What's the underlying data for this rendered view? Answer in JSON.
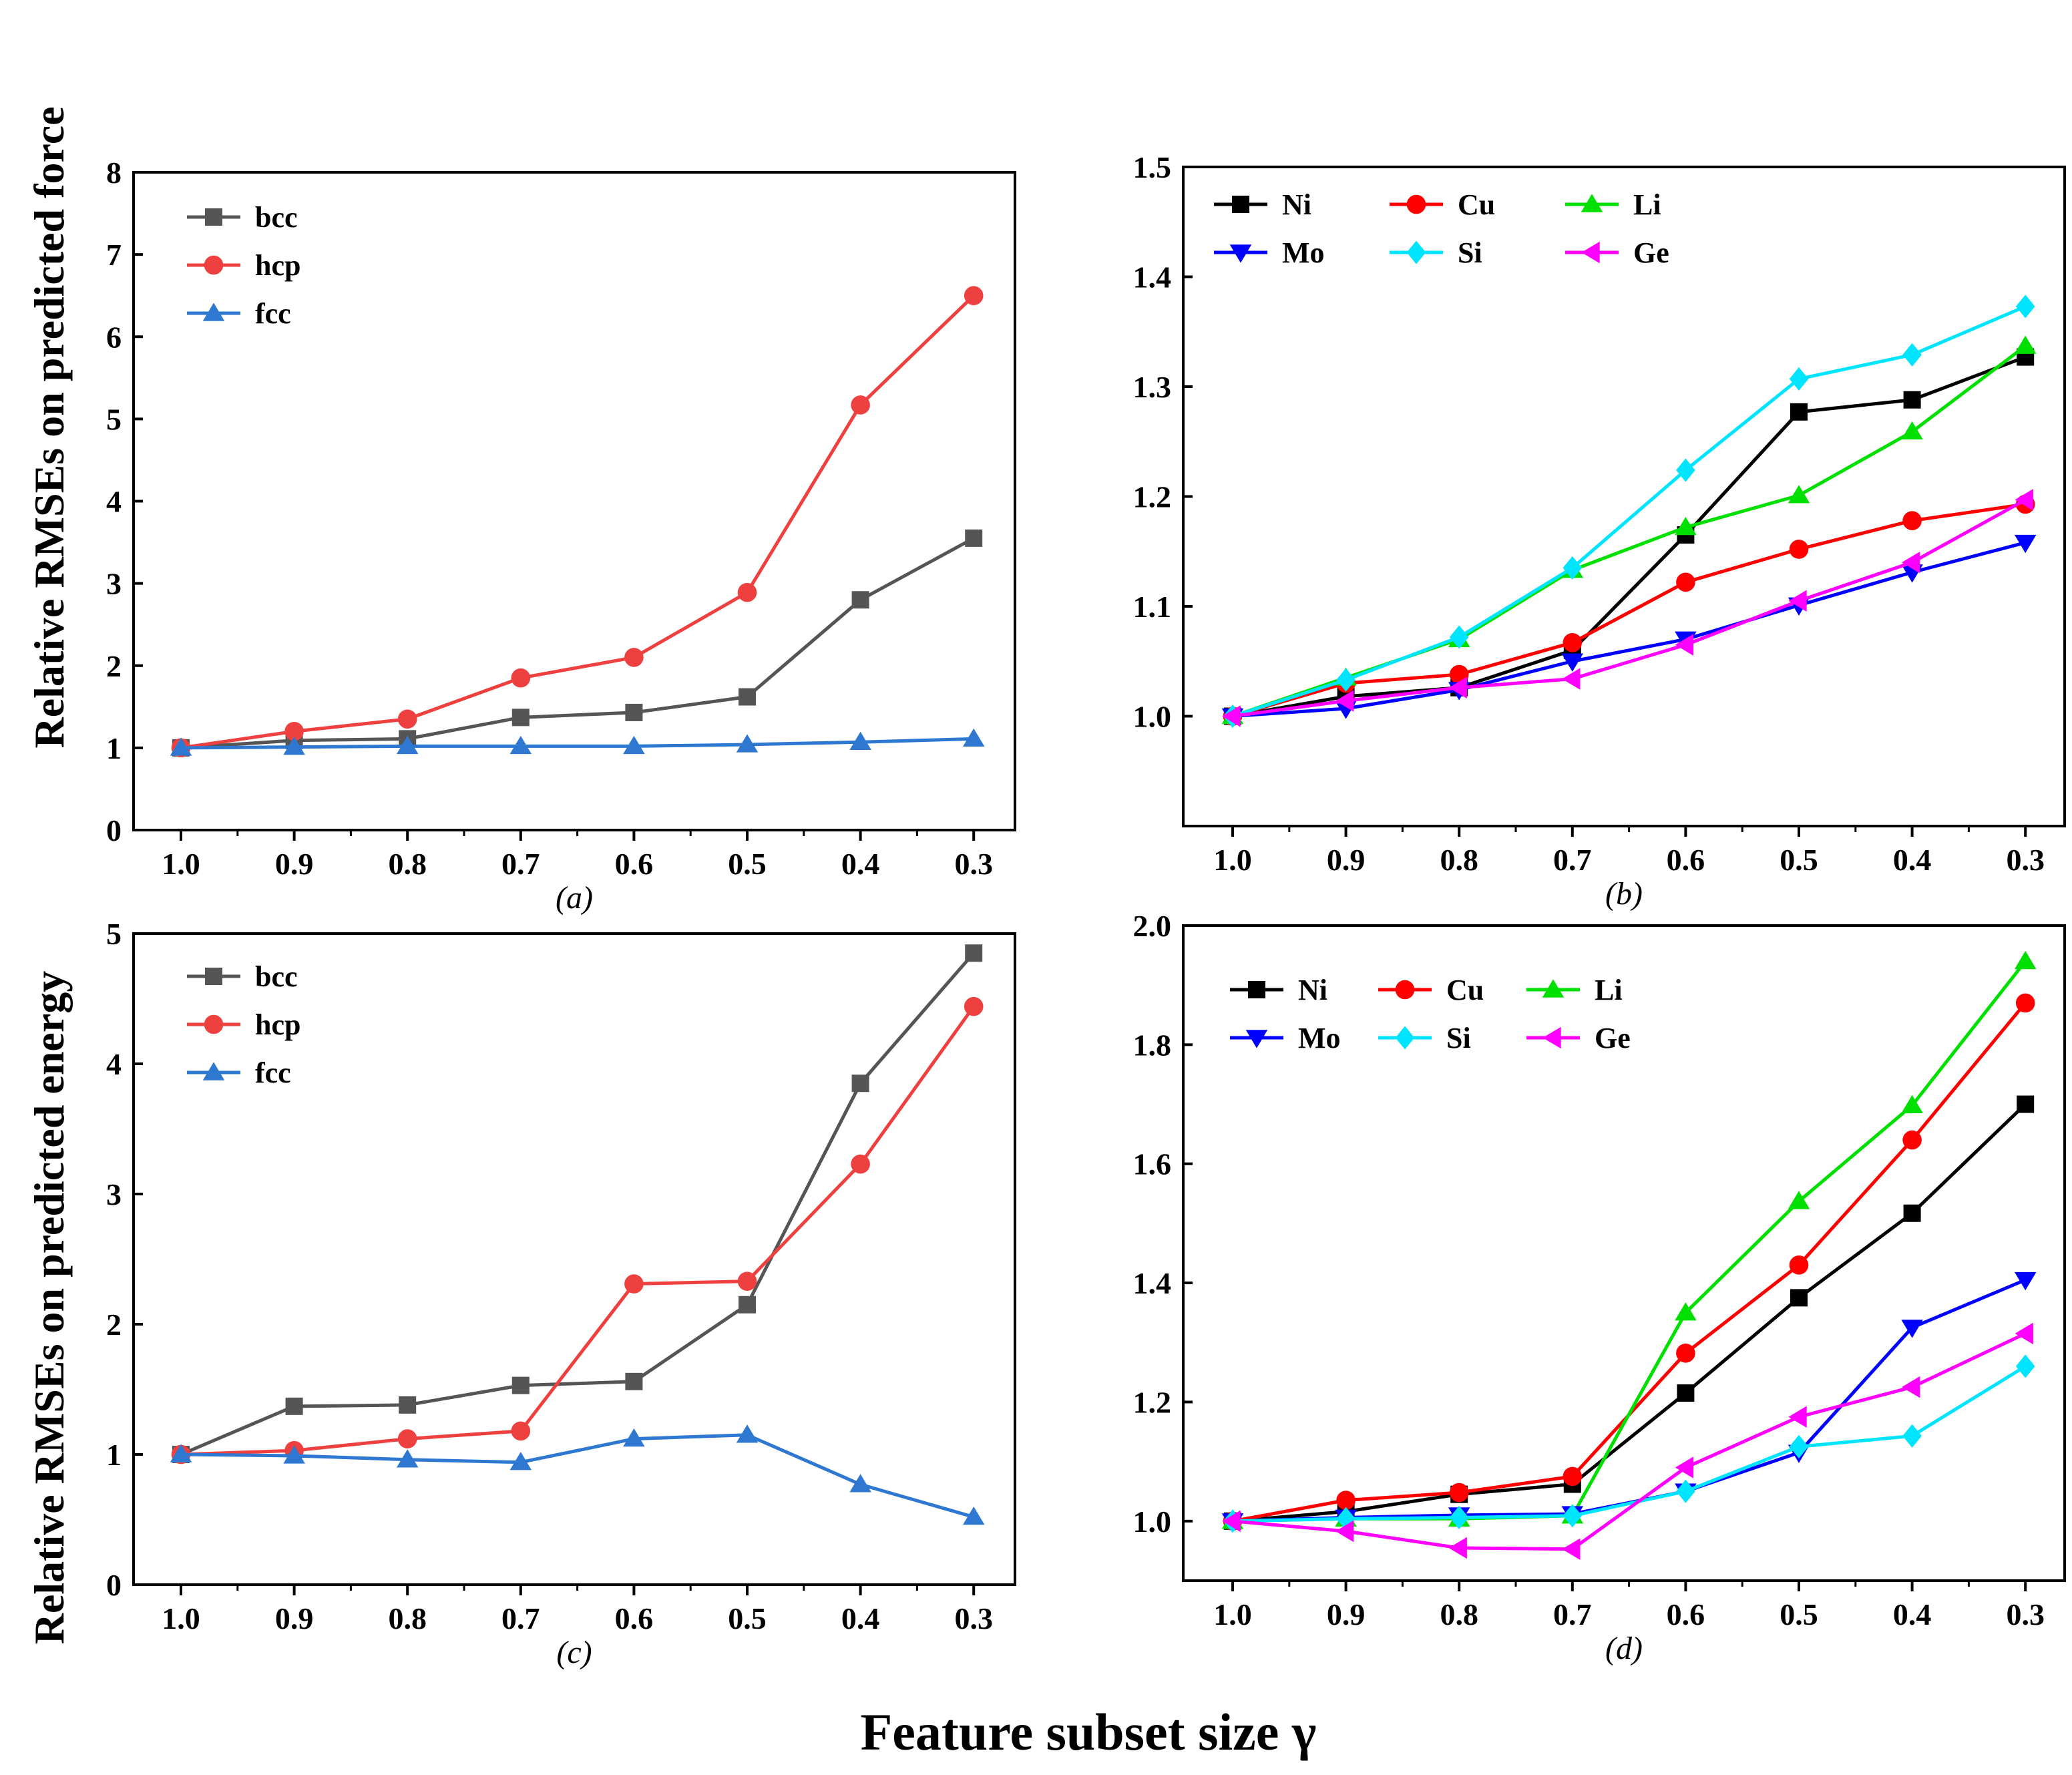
{
  "figure": {
    "ylabel_top": "Relative RMSEs on predicted force",
    "ylabel_bottom": "Relative RMSEs on predicted energy",
    "xlabel": "Feature subset size γ"
  },
  "colors": {
    "bcc": "#555555",
    "hcp": "#ef4040",
    "fcc": "#2e78d2",
    "Ni": "#000000",
    "Cu": "#ff0000",
    "Li": "#00e000",
    "Mo": "#0000ff",
    "Si": "#00e5ff",
    "Ge": "#ff00ff"
  },
  "chart_data": [
    {
      "id": "a",
      "type": "line",
      "panel_label": "(a)",
      "categories": [
        "1.0",
        "0.9",
        "0.8",
        "0.7",
        "0.6",
        "0.5",
        "0.4",
        "0.3"
      ],
      "ylim": [
        0,
        8
      ],
      "yticks": [
        "0",
        "1",
        "2",
        "3",
        "4",
        "5",
        "6",
        "7",
        "8"
      ],
      "legend_position": "top-left",
      "legend_cols": 1,
      "series": [
        {
          "name": "bcc",
          "marker": "square",
          "values": [
            1.0,
            1.09,
            1.11,
            1.37,
            1.43,
            1.62,
            2.8,
            3.55
          ]
        },
        {
          "name": "hcp",
          "marker": "circle",
          "values": [
            1.0,
            1.2,
            1.35,
            1.85,
            2.1,
            2.89,
            5.17,
            6.5
          ]
        },
        {
          "name": "fcc",
          "marker": "triangle-up",
          "values": [
            1.0,
            1.01,
            1.02,
            1.02,
            1.02,
            1.04,
            1.07,
            1.11
          ]
        }
      ]
    },
    {
      "id": "b",
      "type": "line",
      "panel_label": "(b)",
      "categories": [
        "1.0",
        "0.9",
        "0.8",
        "0.7",
        "0.6",
        "0.5",
        "0.4",
        "0.3"
      ],
      "ylim": [
        0.9,
        1.5
      ],
      "yticks": [
        "1.0",
        "1.1",
        "1.2",
        "1.3",
        "1.4",
        "1.5"
      ],
      "legend_position": "top-left",
      "legend_cols": 3,
      "series": [
        {
          "name": "Ni",
          "marker": "square",
          "values": [
            1.0,
            1.018,
            1.026,
            1.06,
            1.165,
            1.277,
            1.288,
            1.327
          ]
        },
        {
          "name": "Cu",
          "marker": "circle",
          "values": [
            1.0,
            1.03,
            1.038,
            1.067,
            1.122,
            1.152,
            1.178,
            1.193
          ]
        },
        {
          "name": "Li",
          "marker": "triangle-up",
          "values": [
            1.0,
            1.035,
            1.07,
            1.133,
            1.172,
            1.201,
            1.259,
            1.337
          ]
        },
        {
          "name": "Mo",
          "marker": "triangle-down",
          "values": [
            1.0,
            1.007,
            1.024,
            1.05,
            1.07,
            1.101,
            1.131,
            1.158
          ]
        },
        {
          "name": "Si",
          "marker": "diamond",
          "values": [
            1.0,
            1.033,
            1.072,
            1.135,
            1.224,
            1.307,
            1.329,
            1.373
          ]
        },
        {
          "name": "Ge",
          "marker": "triangle-left",
          "values": [
            1.0,
            1.014,
            1.026,
            1.034,
            1.065,
            1.105,
            1.14,
            1.197
          ]
        }
      ]
    },
    {
      "id": "c",
      "type": "line",
      "panel_label": "(c)",
      "categories": [
        "1.0",
        "0.9",
        "0.8",
        "0.7",
        "0.6",
        "0.5",
        "0.4",
        "0.3"
      ],
      "ylim": [
        0,
        5
      ],
      "yticks": [
        "0",
        "1",
        "2",
        "3",
        "4",
        "5"
      ],
      "legend_position": "top-left",
      "legend_cols": 1,
      "series": [
        {
          "name": "bcc",
          "marker": "square",
          "values": [
            1.0,
            1.37,
            1.38,
            1.53,
            1.56,
            2.15,
            3.85,
            4.85
          ]
        },
        {
          "name": "hcp",
          "marker": "circle",
          "values": [
            1.0,
            1.03,
            1.12,
            1.18,
            2.31,
            2.33,
            3.23,
            4.44
          ]
        },
        {
          "name": "fcc",
          "marker": "triangle-up",
          "values": [
            1.0,
            0.99,
            0.96,
            0.94,
            1.12,
            1.15,
            0.77,
            0.52
          ]
        }
      ]
    },
    {
      "id": "d",
      "type": "line",
      "panel_label": "(d)",
      "categories": [
        "1.0",
        "0.9",
        "0.8",
        "0.7",
        "0.6",
        "0.5",
        "0.4",
        "0.3"
      ],
      "ylim": [
        0.9,
        2.0
      ],
      "yticks": [
        "1.0",
        "1.2",
        "1.4",
        "1.6",
        "1.8",
        "2.0"
      ],
      "legend_position": "top-left",
      "legend_cols": 3,
      "series": [
        {
          "name": "Ni",
          "marker": "square",
          "values": [
            1.0,
            1.016,
            1.045,
            1.062,
            1.215,
            1.375,
            1.517,
            1.7
          ]
        },
        {
          "name": "Cu",
          "marker": "circle",
          "values": [
            1.0,
            1.035,
            1.048,
            1.075,
            1.282,
            1.43,
            1.64,
            1.87
          ]
        },
        {
          "name": "Li",
          "marker": "triangle-up",
          "values": [
            1.0,
            1.004,
            1.004,
            1.009,
            1.35,
            1.537,
            1.698,
            1.94
          ]
        },
        {
          "name": "Mo",
          "marker": "triangle-down",
          "values": [
            1.0,
            1.006,
            1.01,
            1.012,
            1.05,
            1.115,
            1.325,
            1.405
          ]
        },
        {
          "name": "Si",
          "marker": "diamond",
          "values": [
            1.0,
            1.004,
            1.006,
            1.009,
            1.05,
            1.125,
            1.143,
            1.26
          ]
        },
        {
          "name": "Ge",
          "marker": "triangle-left",
          "values": [
            1.0,
            0.983,
            0.955,
            0.953,
            1.09,
            1.175,
            1.225,
            1.315
          ]
        }
      ]
    }
  ]
}
